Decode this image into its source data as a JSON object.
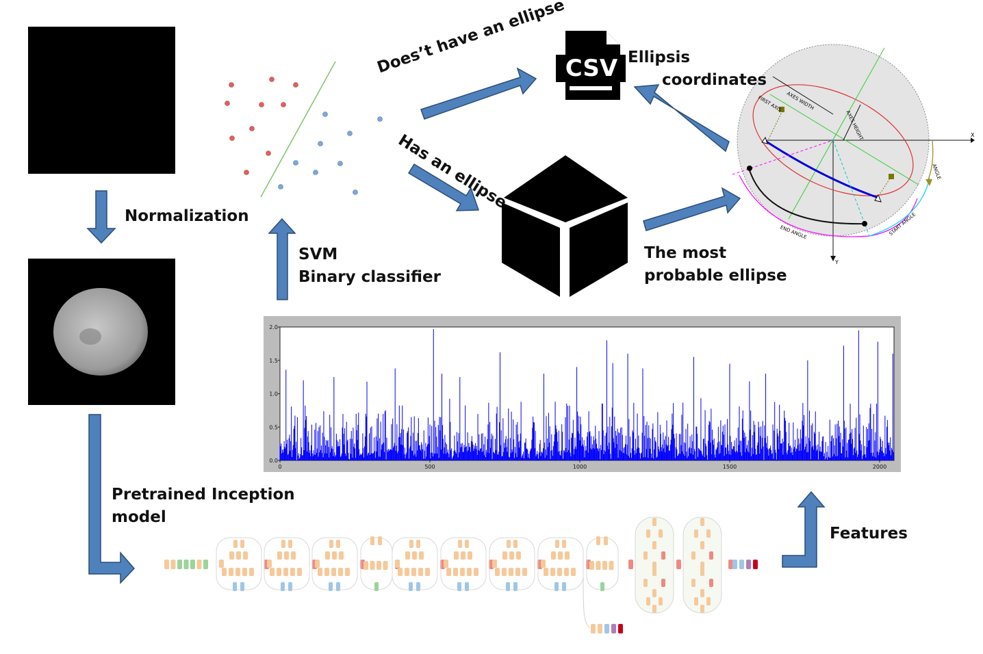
{
  "labels": {
    "normalization": "Normalization",
    "svm_line1": "SVM",
    "svm_line2": "Binary classifier",
    "no_ellipse": "Does’t have an ellipse",
    "has_ellipse": "Has an ellipse",
    "csv_text": "CSV",
    "ellipsis_line1": "Ellipsis",
    "ellipsis_line2": "coordinates",
    "most_line1": "The most",
    "most_line2": "probable ellipse",
    "pretrained_line1": "Pretrained Inception",
    "pretrained_line2": "model",
    "features": "Features"
  },
  "ellipse_diagram": {
    "axes_width": "AXES WIDTH",
    "axes_height": "AXES HEIGHT",
    "first_axis": "FIRST AXIS",
    "angle": "ANGLE",
    "start_angle": "START ANGLE",
    "end_angle": "END ANGLE",
    "x": "X",
    "y": "Y"
  },
  "colors": {
    "arrow_fill": "#4f81bd",
    "arrow_stroke": "#2c4d75",
    "feature_bar": "#0000ff",
    "svm_red": "#e06060",
    "svm_blue": "#7fa7d8",
    "svm_line": "#7ec46a"
  },
  "chart_data": {
    "type": "bar",
    "xlim": [
      0,
      2048
    ],
    "ylim": [
      0,
      2.0
    ],
    "xticks": [
      0,
      500,
      1000,
      1500,
      2000
    ],
    "yticks": [
      "0.0",
      "0.5",
      "1.0",
      "1.5",
      "2.0"
    ],
    "n_features": 2048,
    "series": [
      {
        "values_note": "",
        "peaks": [
          [
            20,
            1.36
          ],
          [
            78,
            1.2
          ],
          [
            180,
            1.25
          ],
          [
            290,
            1.18
          ],
          [
            385,
            1.38
          ],
          [
            512,
            1.97
          ],
          [
            540,
            1.3
          ],
          [
            600,
            1.25
          ],
          [
            735,
            1.62
          ],
          [
            880,
            1.3
          ],
          [
            990,
            1.4
          ],
          [
            1090,
            1.8
          ],
          [
            1110,
            1.46
          ],
          [
            1160,
            1.6
          ],
          [
            1210,
            1.38
          ],
          [
            1380,
            1.55
          ],
          [
            1500,
            1.45
          ],
          [
            1620,
            1.3
          ],
          [
            1760,
            1.5
          ],
          [
            1880,
            1.72
          ],
          [
            1930,
            1.95
          ],
          [
            1995,
            1.78
          ],
          [
            2045,
            1.6
          ]
        ]
      }
    ]
  }
}
